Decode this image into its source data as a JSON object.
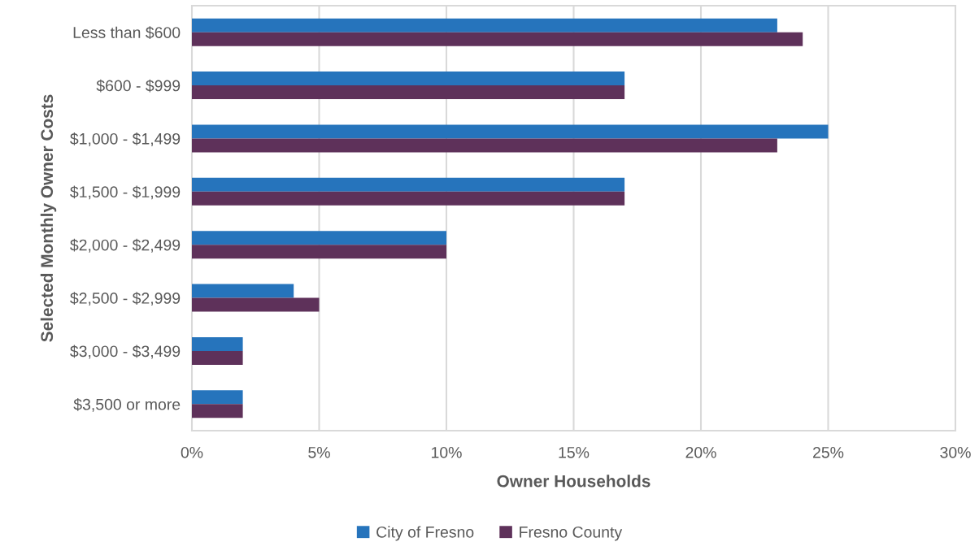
{
  "chart_data": {
    "type": "bar",
    "orientation": "horizontal",
    "xlabel": "Owner Households",
    "ylabel": "Selected Monthly Owner Costs",
    "categories": [
      "Less than $600",
      "$600 - $999",
      "$1,000 - $1,499",
      "$1,500 - $1,999",
      "$2,000 - $2,499",
      "$2,500 - $2,999",
      "$3,000 - $3,499",
      "$3,500 or more"
    ],
    "series": [
      {
        "name": "City of Fresno",
        "color": "#2674bc",
        "values": [
          23,
          17,
          25,
          17,
          10,
          4,
          2,
          2
        ]
      },
      {
        "name": "Fresno County",
        "color": "#5e315a",
        "values": [
          24,
          17,
          23,
          17,
          10,
          5,
          2,
          2
        ]
      }
    ],
    "xlim": [
      0,
      30
    ],
    "xticks": [
      {
        "value": 0,
        "label": "0%"
      },
      {
        "value": 5,
        "label": "5%"
      },
      {
        "value": 10,
        "label": "10%"
      },
      {
        "value": 15,
        "label": "15%"
      },
      {
        "value": 20,
        "label": "20%"
      },
      {
        "value": 25,
        "label": "25%"
      },
      {
        "value": 30,
        "label": "30%"
      }
    ],
    "grid": "x",
    "legend": "bottom"
  }
}
